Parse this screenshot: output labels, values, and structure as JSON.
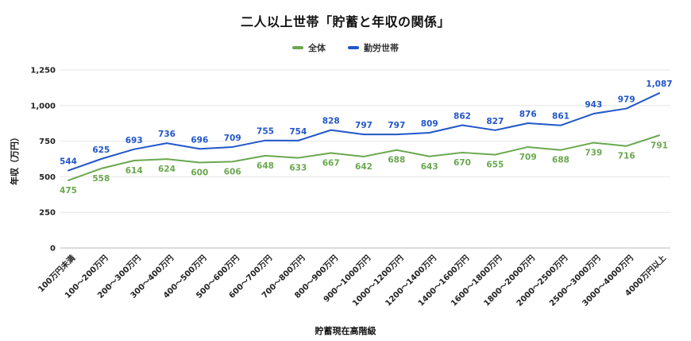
{
  "title": "二人以上世帯「貯蓄と年収の関係」",
  "chart_data": {
    "type": "line",
    "title": "二人以上世帯「貯蓄と年収の関係」",
    "xlabel": "貯蓄現在高階級",
    "ylabel": "年収（万円）",
    "ylim": [
      0,
      1250
    ],
    "yticks": [
      0,
      250,
      500,
      750,
      1000,
      1250
    ],
    "grid": true,
    "legend_position": "top",
    "categories": [
      "100万円未満",
      "100〜200万円",
      "200〜300万円",
      "300〜400万円",
      "400〜500万円",
      "500〜600万円",
      "600〜700万円",
      "700〜800万円",
      "800〜900万円",
      "900〜1000万円",
      "1000〜1200万円",
      "1200〜1400万円",
      "1400〜1600万円",
      "1600〜1800万円",
      "1800〜2000万円",
      "2000〜2500万円",
      "2500〜3000万円",
      "3000〜4000万円",
      "4000万円以上"
    ],
    "series": [
      {
        "name": "全体",
        "color": "#6aa84f",
        "label_position": "below",
        "values": [
          475,
          558,
          614,
          624,
          600,
          606,
          648,
          633,
          667,
          642,
          688,
          643,
          670,
          655,
          709,
          688,
          739,
          716,
          791
        ]
      },
      {
        "name": "勤労世帯",
        "color": "#2256c9",
        "label_position": "above",
        "values": [
          544,
          625,
          693,
          736,
          696,
          709,
          755,
          754,
          828,
          797,
          797,
          809,
          862,
          827,
          876,
          861,
          943,
          979,
          1087
        ]
      }
    ]
  }
}
